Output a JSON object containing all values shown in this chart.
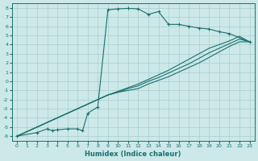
{
  "xlabel": "Humidex (Indice chaleur)",
  "background_color": "#cce8e8",
  "grid_color": "#aacece",
  "line_color": "#1a7070",
  "xlim": [
    -0.5,
    23.5
  ],
  "ylim": [
    -6.5,
    8.5
  ],
  "x_ticks": [
    0,
    1,
    2,
    3,
    4,
    5,
    6,
    7,
    8,
    9,
    10,
    11,
    12,
    13,
    14,
    15,
    16,
    17,
    18,
    19,
    20,
    21,
    22,
    23
  ],
  "y_ticks": [
    -6,
    -5,
    -4,
    -3,
    -2,
    -1,
    0,
    1,
    2,
    3,
    4,
    5,
    6,
    7,
    8
  ],
  "series": [
    {
      "x": [
        0,
        2,
        3,
        3.5,
        4,
        5,
        6,
        6.5,
        7,
        8,
        9,
        10,
        11,
        12,
        13,
        14,
        15,
        16,
        17,
        18,
        19,
        20,
        21,
        23
      ],
      "y": [
        -6,
        -5.6,
        -5.2,
        -5.4,
        -5.3,
        -5.2,
        -5.2,
        -5.4,
        -3.5,
        -2.8,
        7.8,
        7.9,
        7.95,
        7.9,
        7.3,
        7.6,
        6.2,
        6.2,
        6.0,
        5.8,
        5.7,
        5.4,
        5.2,
        4.3
      ],
      "marker": "+"
    },
    {
      "x": [
        0,
        9,
        10,
        11,
        12,
        13,
        14,
        15,
        16,
        17,
        18,
        19,
        20,
        21,
        22,
        23
      ],
      "y": [
        -6,
        -1.5,
        -1.2,
        -1.0,
        -0.8,
        -0.3,
        0.1,
        0.5,
        1.0,
        1.5,
        2.0,
        2.6,
        3.2,
        3.8,
        4.3,
        4.3
      ],
      "marker": null
    },
    {
      "x": [
        0,
        9,
        10,
        11,
        12,
        13,
        14,
        15,
        16,
        17,
        18,
        19,
        20,
        21,
        22,
        23
      ],
      "y": [
        -6,
        -1.5,
        -1.2,
        -0.8,
        -0.5,
        0.0,
        0.4,
        0.9,
        1.4,
        1.9,
        2.5,
        3.1,
        3.6,
        4.1,
        4.6,
        4.3
      ],
      "marker": null
    },
    {
      "x": [
        0,
        9,
        10,
        11,
        12,
        13,
        14,
        15,
        16,
        17,
        18,
        19,
        20,
        21,
        22,
        23
      ],
      "y": [
        -6,
        -1.5,
        -1.1,
        -0.7,
        -0.3,
        0.2,
        0.7,
        1.2,
        1.8,
        2.4,
        3.0,
        3.6,
        4.0,
        4.4,
        4.9,
        4.3
      ],
      "marker": null
    }
  ]
}
